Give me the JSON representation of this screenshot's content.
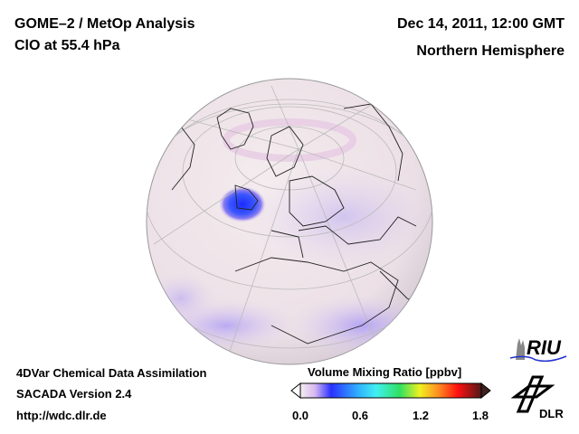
{
  "header": {
    "title": "GOME–2 / MetOp Analysis",
    "species": "ClO at 55.4 hPa",
    "datetime": "Dec 14, 2011, 12:00 GMT",
    "region": "Northern Hemisphere"
  },
  "footer": {
    "line1": "4DVar Chemical Data Assimilation",
    "line2": "SACADA Version 2.4",
    "url": "http://wdc.dlr.de"
  },
  "colorbar": {
    "title": "Volume Mixing Ratio [ppbv]",
    "ticks": [
      "0.0",
      "0.6",
      "1.2",
      "1.8"
    ],
    "range": [
      0.0,
      1.8
    ]
  },
  "logos": {
    "riu": "RIU",
    "dlr": "DLR"
  },
  "colors": {
    "background_field": "#f2e6ea",
    "low_purple": "#c9b8f0",
    "high_blue": "#2a3cff"
  }
}
